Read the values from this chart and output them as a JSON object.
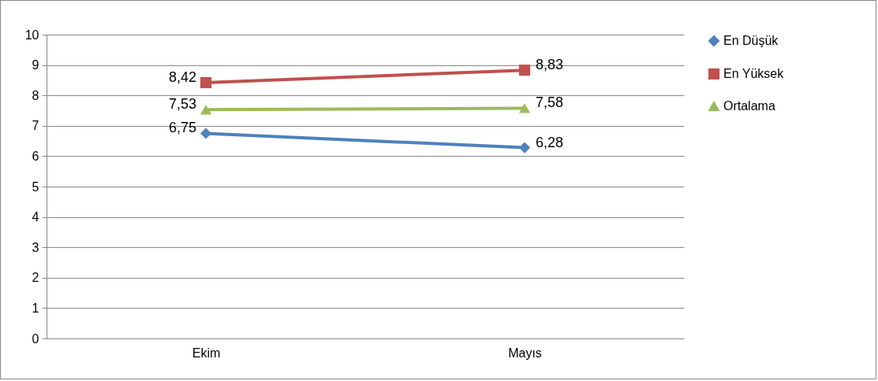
{
  "chart_data": {
    "type": "line",
    "categories": [
      "Ekim",
      "Mayıs"
    ],
    "series": [
      {
        "name": "En Düşük",
        "color": "#4f81bd",
        "marker": "diamond",
        "values": [
          6.75,
          6.28
        ],
        "value_labels": [
          "6,75",
          "6,28"
        ]
      },
      {
        "name": "En Yüksek",
        "color": "#c0504d",
        "marker": "square",
        "values": [
          8.42,
          8.83
        ],
        "value_labels": [
          "8,42",
          "8,83"
        ]
      },
      {
        "name": "Ortalama",
        "color": "#9bbb59",
        "marker": "triangle",
        "values": [
          7.53,
          7.58
        ],
        "value_labels": [
          "7,53",
          "7,58"
        ]
      }
    ],
    "ylim": [
      0,
      10
    ],
    "yticks": [
      0,
      1,
      2,
      3,
      4,
      5,
      6,
      7,
      8,
      9,
      10
    ],
    "grid": "y",
    "legend": "right"
  }
}
